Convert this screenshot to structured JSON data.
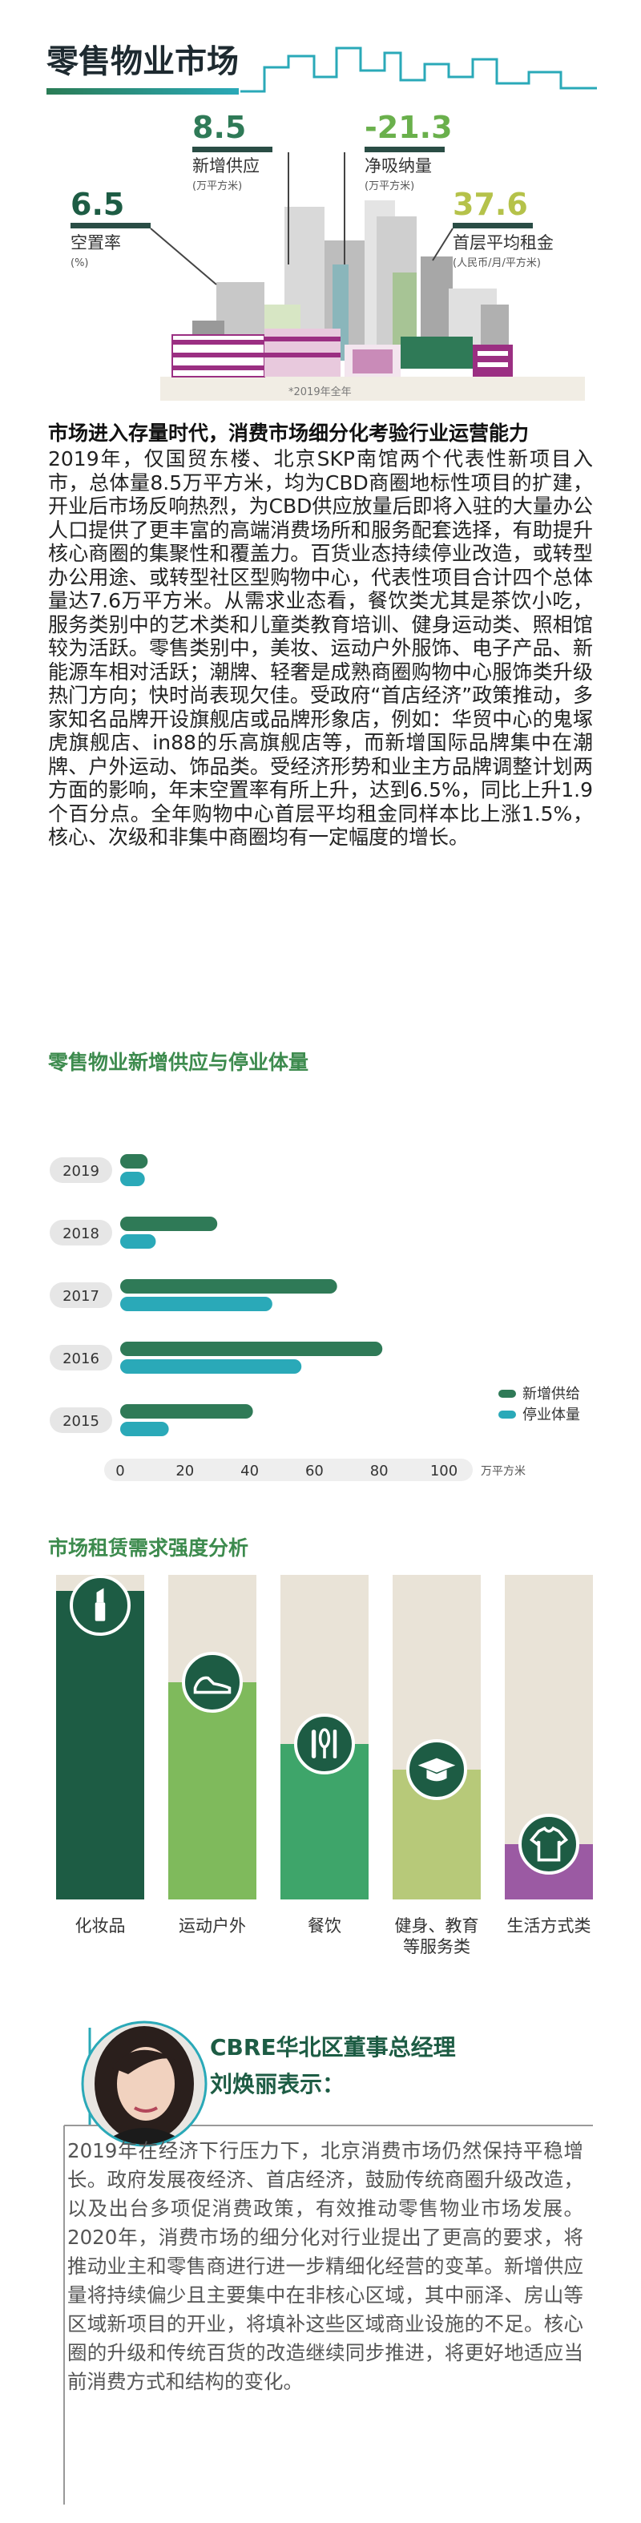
{
  "header": {
    "title": "零售物业市场",
    "stats": [
      {
        "value": "8.5",
        "label": "新增供应",
        "unit": "(万平方米)"
      },
      {
        "value": "-21.3",
        "label": "净吸纳量",
        "unit": "(万平方米)"
      },
      {
        "value": "6.5",
        "label": "空置率",
        "unit": "(%)"
      },
      {
        "value": "37.6",
        "label": "首层平均租金",
        "unit": "(人民币/月/平方米)"
      }
    ],
    "note": "*2019年全年"
  },
  "article": {
    "heading": "市场进入存量时代，消费市场细分化考验行业运营能力",
    "body": "2019年，仅国贸东楼、北京SKP南馆两个代表性新项目入市，总体量8.5万平方米，均为CBD商圈地标性项目的扩建，开业后市场反响热烈，为CBD供应放量后即将入驻的大量办公人口提供了更丰富的高端消费场所和服务配套选择，有助提升核心商圈的集聚性和覆盖力。百货业态持续停业改造，或转型办公用途、或转型社区型购物中心，代表性项目合计四个总体量达7.6万平方米。从需求业态看，餐饮类尤其是茶饮小吃，服务类别中的艺术类和儿童类教育培训、健身运动类、照相馆较为活跃。零售类别中，美妆、运动户外服饰、电子产品、新能源车相对活跃；潮牌、轻奢是成熟商圈购物中心服饰类升级热门方向；快时尚表现欠佳。受政府“首店经济”政策推动，多家知名品牌开设旗舰店或品牌形象店，例如：华贸中心的鬼塚虎旗舰店、in88的乐高旗舰店等，而新增国际品牌集中在潮牌、户外运动、饰品类。受经济形势和业主方品牌调整计划两方面的影响，年末空置率有所上升，达到6.5%，同比上升1.9个百分点。全年购物中心首层平均租金同样本比上涨1.5%，核心、次级和非集中商圈均有一定幅度的增长。"
  },
  "chart_data": [
    {
      "type": "bar",
      "orientation": "horizontal",
      "title": "零售物业新增供应与停业体量",
      "categories": [
        "2019",
        "2018",
        "2017",
        "2016",
        "2015"
      ],
      "series": [
        {
          "name": "新增供给",
          "color": "#2f7a57",
          "values": [
            8.5,
            30,
            67,
            81,
            41
          ]
        },
        {
          "name": "停业体量",
          "color": "#2aa9b8",
          "values": [
            7.6,
            11,
            47,
            56,
            15
          ]
        }
      ],
      "xlim": [
        0,
        100
      ],
      "xticks": [
        0,
        20,
        40,
        60,
        80,
        100
      ],
      "x_label": "万平方米",
      "legend": "right"
    },
    {
      "type": "column",
      "title": "市场租赁需求强度分析",
      "categories": [
        "化妆品",
        "运动户外",
        "餐饮",
        "健身、教育等服务类",
        "生活方式类"
      ],
      "values": [
        95,
        67,
        48,
        40,
        17
      ],
      "colors": [
        "#1d5c44",
        "#7fba5c",
        "#3ea56a",
        "#b7c979",
        "#9b5aa3"
      ],
      "ylim": [
        0,
        100
      ]
    }
  ],
  "quote": {
    "title": "CBRE华北区董事总经理",
    "name": "刘焕丽表示：",
    "text": "2019年在经济下行压力下，北京消费市场仍然保持平稳增长。政府发展夜经济、首店经济，鼓励传统商圈升级改造，以及出台多项促消费政策，有效推动零售物业市场发展。2020年，消费市场的细分化对行业提出了更高的要求，将推动业主和零售商进行进一步精细化经营的变革。新增供应量将持续偏少且主要集中在非核心区域，其中丽泽、房山等区域新项目的开业，将填补这些区域商业设施的不足。核心圈的升级和传统百货的改造继续同步推进，将更好地适应当前消费方式和结构的变化。"
  }
}
